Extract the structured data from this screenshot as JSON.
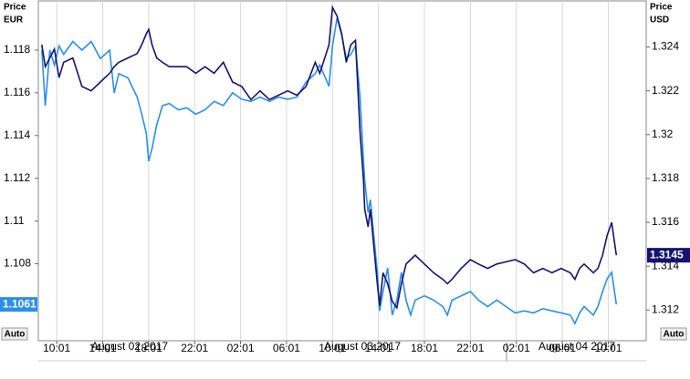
{
  "chart_data": {
    "type": "line",
    "y_label": "Price",
    "y_unit": "EUR",
    "y2_label": "Price",
    "y2_unit": "USD",
    "x": [
      -1.3,
      -1.0,
      -0.6,
      -0.2,
      0.2,
      0.6,
      1.4,
      2.2,
      3.0,
      3.8,
      4.6,
      5.0,
      5.4,
      6.2,
      7.0,
      7.4,
      7.8,
      8.0,
      8.3,
      8.7,
      9.2,
      9.8,
      10.6,
      11.3,
      12.1,
      12.9,
      13.7,
      14.5,
      15.3,
      16.1,
      16.9,
      17.7,
      18.5,
      19.3,
      20.1,
      20.9,
      21.7,
      22.5,
      22.9,
      23.7,
      24.0,
      24.4,
      24.8,
      25.2,
      25.6,
      26.0,
      26.4,
      26.7,
      26.8,
      27.1,
      27.3,
      27.6,
      27.9,
      28.1,
      28.4,
      28.8,
      29.2,
      29.6,
      30.0,
      30.4,
      30.8,
      31.2,
      32.0,
      32.8,
      33.6,
      34.0,
      34.4,
      35.2,
      36.0,
      36.7,
      37.5,
      38.3,
      39.1,
      39.9,
      40.7,
      41.5,
      42.3,
      43.1,
      43.9,
      44.7,
      45.1,
      45.5,
      45.9,
      46.3,
      46.7,
      47.1,
      47.5,
      47.9,
      48.3,
      48.7
    ],
    "series": [
      {
        "color": "#2b8fe8",
        "values": [
          1.118,
          1.1154,
          1.118,
          1.1173,
          1.1182,
          1.1178,
          1.1184,
          1.118,
          1.1184,
          1.1176,
          1.118,
          1.116,
          1.1169,
          1.1167,
          1.1158,
          1.115,
          1.1141,
          1.1128,
          1.1134,
          1.1145,
          1.1154,
          1.1155,
          1.1152,
          1.1153,
          1.115,
          1.1152,
          1.1156,
          1.1154,
          1.116,
          1.1157,
          1.1156,
          1.1158,
          1.1156,
          1.1158,
          1.1157,
          1.1158,
          1.1165,
          1.1169,
          1.1173,
          1.1163,
          1.1182,
          1.1195,
          1.1187,
          1.1176,
          1.1178,
          1.1182,
          1.1158,
          1.1128,
          1.1119,
          1.1104,
          1.111,
          1.1093,
          1.1076,
          1.1058,
          1.1067,
          1.1078,
          1.1056,
          1.1063,
          1.1076,
          1.1063,
          1.1056,
          1.1063,
          1.1065,
          1.1063,
          1.106,
          1.1056,
          1.1063,
          1.1065,
          1.1067,
          1.1063,
          1.106,
          1.1063,
          1.106,
          1.1057,
          1.1058,
          1.1057,
          1.1059,
          1.1058,
          1.1057,
          1.1056,
          1.1052,
          1.1057,
          1.106,
          1.1058,
          1.1056,
          1.106,
          1.1067,
          1.1073,
          1.1076,
          1.1061
        ]
      },
      {
        "color": "#14146e",
        "axis": "y2",
        "values": [
          1.3241,
          1.3231,
          1.3235,
          1.3239,
          1.3226,
          1.3233,
          1.3235,
          1.3222,
          1.322,
          1.3224,
          1.3228,
          1.3231,
          1.3233,
          1.3235,
          1.3237,
          1.3241,
          1.3246,
          1.3248,
          1.3241,
          1.3235,
          1.3233,
          1.3231,
          1.3231,
          1.3231,
          1.3228,
          1.3231,
          1.3228,
          1.3233,
          1.3224,
          1.3222,
          1.3216,
          1.322,
          1.3216,
          1.3218,
          1.322,
          1.3218,
          1.3222,
          1.3233,
          1.3228,
          1.3241,
          1.3258,
          1.3254,
          1.3246,
          1.3233,
          1.3241,
          1.3243,
          1.3201,
          1.3179,
          1.3166,
          1.3158,
          1.3166,
          1.3149,
          1.3132,
          1.3122,
          1.3137,
          1.3132,
          1.3124,
          1.3121,
          1.3132,
          1.3141,
          1.3143,
          1.3145,
          1.3141,
          1.3137,
          1.3134,
          1.3132,
          1.3134,
          1.3139,
          1.3143,
          1.3141,
          1.3139,
          1.3141,
          1.3142,
          1.3143,
          1.3141,
          1.3137,
          1.3139,
          1.3137,
          1.3139,
          1.3137,
          1.3134,
          1.3139,
          1.3141,
          1.3139,
          1.3137,
          1.3139,
          1.3145,
          1.3154,
          1.316,
          1.3145
        ]
      }
    ],
    "xlim": [
      -1.6,
      51.3
    ],
    "xticks": [
      {
        "value": 0,
        "label": "10:01"
      },
      {
        "value": 4,
        "label": "14:01"
      },
      {
        "value": 8,
        "label": "18:01"
      },
      {
        "value": 12,
        "label": "22:01"
      },
      {
        "value": 16,
        "label": "02:01"
      },
      {
        "value": 20,
        "label": "06:01"
      },
      {
        "value": 24,
        "label": "10:01"
      },
      {
        "value": 28,
        "label": "14:01"
      },
      {
        "value": 32,
        "label": "18:01"
      },
      {
        "value": 36,
        "label": "22:01"
      },
      {
        "value": 40,
        "label": "02:01"
      },
      {
        "value": 44,
        "label": "06:01"
      },
      {
        "value": 48,
        "label": "10:01"
      }
    ],
    "dates": [
      "August 02 2017",
      "August 03 2017",
      "August 04 2017"
    ],
    "ylim": [
      1.1044,
      1.1203
    ],
    "yticks": [
      1.108,
      1.11,
      1.112,
      1.114,
      1.116,
      1.118
    ],
    "y2lim": [
      1.3106,
      1.3261
    ],
    "y2ticks": [
      1.312,
      1.314,
      1.316,
      1.318,
      1.32,
      1.322,
      1.324
    ],
    "auto_button": "Auto",
    "grid": true
  }
}
